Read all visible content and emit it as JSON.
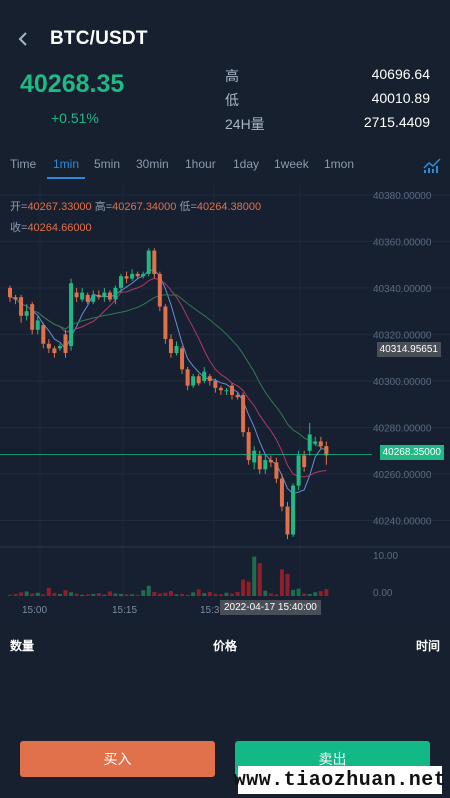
{
  "header": {
    "title": "BTC/USDT",
    "price": "40268.35",
    "change": "+0.51%",
    "stats": [
      {
        "label": "高",
        "value": "40696.64"
      },
      {
        "label": "低",
        "value": "40010.89"
      },
      {
        "label": "24H量",
        "value": "2715.4409"
      }
    ]
  },
  "tabs": [
    "Time",
    "1min",
    "5min",
    "30min",
    "1hour",
    "1day",
    "1week",
    "1mon"
  ],
  "active_tab": "1min",
  "ohlc": {
    "open_label": "开=",
    "open": "40267.33000",
    "high_label": "高=",
    "high": "40267.34000",
    "low_label": "低=",
    "low": "40264.38000",
    "close_label": "收=",
    "close": "40264.66000"
  },
  "price_axis": [
    "40380.00000",
    "40360.00000",
    "40340.00000",
    "40320.00000",
    "40300.00000",
    "40280.00000",
    "40260.00000",
    "40240.00000"
  ],
  "volume_axis": [
    "10.00",
    "0.00"
  ],
  "current_price_badge": "40268.35000",
  "cursor_price_badge": "40314.95651",
  "time_axis": [
    "15:00",
    "15:15",
    "15:3"
  ],
  "cursor_time": "2022-04-17 15:40:00",
  "trade_list": {
    "qty": "数量",
    "price": "价格",
    "time": "时间"
  },
  "buttons": {
    "buy": "买入",
    "sell": "卖出"
  },
  "watermark": "www.tiaozhuan.net",
  "colors": {
    "up": "#1fb985",
    "down": "#e1714a",
    "accent": "#2e8bdc",
    "background": "#16202e"
  },
  "chart_data": {
    "type": "candlestick",
    "y_range": [
      40230,
      40385
    ],
    "candles": [
      {
        "o": 40340,
        "c": 40336,
        "h": 40341,
        "l": 40334
      },
      {
        "o": 40336,
        "c": 40335,
        "h": 40337,
        "l": 40333
      },
      {
        "o": 40336,
        "c": 40328,
        "h": 40337,
        "l": 40325
      },
      {
        "o": 40328,
        "c": 40330,
        "h": 40333,
        "l": 40326
      },
      {
        "o": 40333,
        "c": 40322,
        "h": 40334,
        "l": 40320
      },
      {
        "o": 40322,
        "c": 40326,
        "h": 40328,
        "l": 40320
      },
      {
        "o": 40324,
        "c": 40316,
        "h": 40325,
        "l": 40314
      },
      {
        "o": 40316,
        "c": 40314,
        "h": 40318,
        "l": 40312
      },
      {
        "o": 40314,
        "c": 40312,
        "h": 40315,
        "l": 40310
      },
      {
        "o": 40314,
        "c": 40315,
        "h": 40316,
        "l": 40313
      },
      {
        "o": 40320,
        "c": 40312,
        "h": 40322,
        "l": 40310
      },
      {
        "o": 40315,
        "c": 40342,
        "h": 40344,
        "l": 40313
      },
      {
        "o": 40338,
        "c": 40336,
        "h": 40340,
        "l": 40334
      },
      {
        "o": 40335,
        "c": 40338,
        "h": 40340,
        "l": 40334
      },
      {
        "o": 40337,
        "c": 40334,
        "h": 40338,
        "l": 40333
      },
      {
        "o": 40334,
        "c": 40337,
        "h": 40339,
        "l": 40333
      },
      {
        "o": 40337,
        "c": 40336,
        "h": 40339,
        "l": 40335
      },
      {
        "o": 40336,
        "c": 40338,
        "h": 40340,
        "l": 40334
      },
      {
        "o": 40338,
        "c": 40335,
        "h": 40339,
        "l": 40334
      },
      {
        "o": 40335,
        "c": 40340,
        "h": 40341,
        "l": 40333
      },
      {
        "o": 40340,
        "c": 40345,
        "h": 40346,
        "l": 40338
      },
      {
        "o": 40345,
        "c": 40344,
        "h": 40347,
        "l": 40342
      },
      {
        "o": 40344,
        "c": 40346,
        "h": 40348,
        "l": 40343
      },
      {
        "o": 40346,
        "c": 40345,
        "h": 40347,
        "l": 40344
      },
      {
        "o": 40345,
        "c": 40346,
        "h": 40347,
        "l": 40344
      },
      {
        "o": 40346,
        "c": 40356,
        "h": 40357,
        "l": 40345
      },
      {
        "o": 40356,
        "c": 40346,
        "h": 40357,
        "l": 40344
      },
      {
        "o": 40346,
        "c": 40332,
        "h": 40347,
        "l": 40330
      },
      {
        "o": 40332,
        "c": 40318,
        "h": 40333,
        "l": 40316
      },
      {
        "o": 40318,
        "c": 40312,
        "h": 40320,
        "l": 40310
      },
      {
        "o": 40312,
        "c": 40315,
        "h": 40317,
        "l": 40311
      },
      {
        "o": 40314,
        "c": 40305,
        "h": 40315,
        "l": 40303
      },
      {
        "o": 40305,
        "c": 40298,
        "h": 40306,
        "l": 40296
      },
      {
        "o": 40298,
        "c": 40302,
        "h": 40303,
        "l": 40297
      },
      {
        "o": 40302,
        "c": 40299,
        "h": 40303,
        "l": 40298
      },
      {
        "o": 40300,
        "c": 40304,
        "h": 40306,
        "l": 40299
      },
      {
        "o": 40302,
        "c": 40300,
        "h": 40303,
        "l": 40298
      },
      {
        "o": 40300,
        "c": 40297,
        "h": 40301,
        "l": 40295
      },
      {
        "o": 40297,
        "c": 40296,
        "h": 40298,
        "l": 40294
      },
      {
        "o": 40296,
        "c": 40296,
        "h": 40297,
        "l": 40294
      },
      {
        "o": 40298,
        "c": 40294,
        "h": 40299,
        "l": 40292
      },
      {
        "o": 40294,
        "c": 40293,
        "h": 40295,
        "l": 40292
      },
      {
        "o": 40294,
        "c": 40278,
        "h": 40295,
        "l": 40276
      },
      {
        "o": 40278,
        "c": 40266,
        "h": 40280,
        "l": 40264
      },
      {
        "o": 40265,
        "c": 40270,
        "h": 40272,
        "l": 40262
      },
      {
        "o": 40268,
        "c": 40262,
        "h": 40270,
        "l": 40260
      },
      {
        "o": 40262,
        "c": 40266,
        "h": 40268,
        "l": 40260
      },
      {
        "o": 40266,
        "c": 40265,
        "h": 40268,
        "l": 40263
      },
      {
        "o": 40265,
        "c": 40258,
        "h": 40267,
        "l": 40256
      },
      {
        "o": 40258,
        "c": 40246,
        "h": 40260,
        "l": 40244
      },
      {
        "o": 40246,
        "c": 40234,
        "h": 40248,
        "l": 40232
      },
      {
        "o": 40234,
        "c": 40255,
        "h": 40256,
        "l": 40233
      },
      {
        "o": 40255,
        "c": 40268,
        "h": 40270,
        "l": 40253
      },
      {
        "o": 40268,
        "c": 40263,
        "h": 40270,
        "l": 40261
      },
      {
        "o": 40270,
        "c": 40277,
        "h": 40282,
        "l": 40268
      },
      {
        "o": 40273,
        "c": 40274,
        "h": 40276,
        "l": 40272
      },
      {
        "o": 40274,
        "c": 40272,
        "h": 40276,
        "l": 40271
      },
      {
        "o": 40272,
        "c": 40268,
        "h": 40274,
        "l": 40264
      }
    ],
    "volumes": [
      0.3,
      0.5,
      0.9,
      1.1,
      0.6,
      0.8,
      0.4,
      2.0,
      0.7,
      0.5,
      1.4,
      0.9,
      0.6,
      0.3,
      0.4,
      0.5,
      0.7,
      0.3,
      1.1,
      0.6,
      0.5,
      0.4,
      0.4,
      0.3,
      1.4,
      2.5,
      1.0,
      0.6,
      0.8,
      1.2,
      0.4,
      0.5,
      0.3,
      0.9,
      1.6,
      0.7,
      1.0,
      0.5,
      0.4,
      0.8,
      0.6,
      1.0,
      4.0,
      3.5,
      9.6,
      8.0,
      1.3,
      0.6,
      0.4,
      6.5,
      5.4,
      1.5,
      1.8,
      0.6,
      0.5,
      0.9,
      1.2,
      1.7
    ],
    "volume_range": [
      0,
      10
    ]
  }
}
